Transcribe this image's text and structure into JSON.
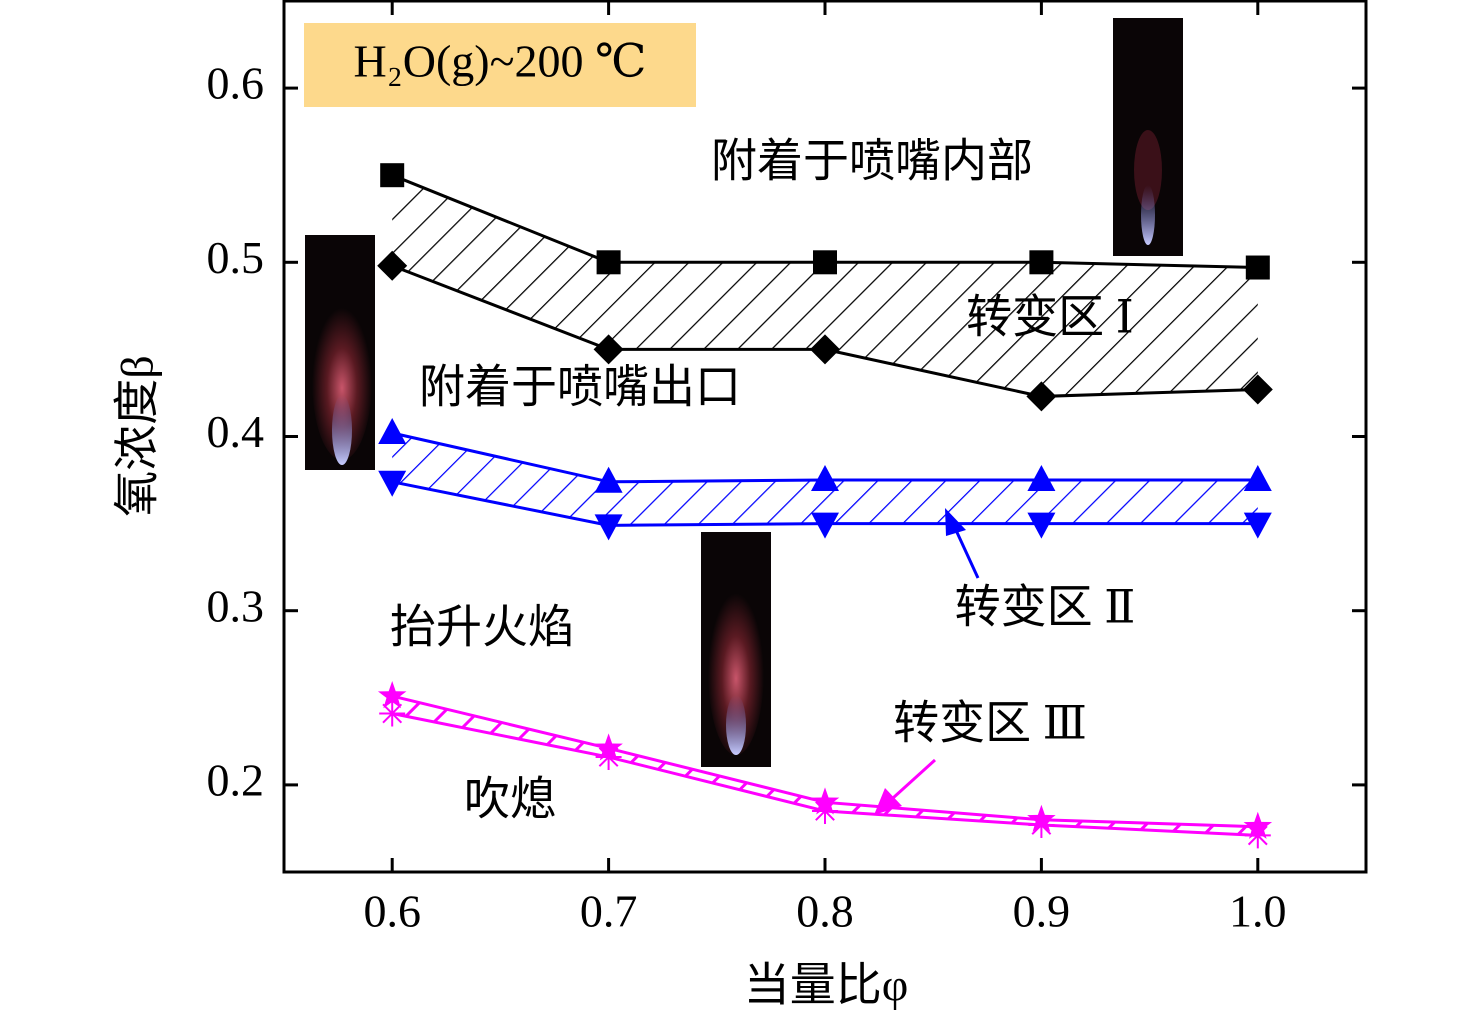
{
  "chart_data": {
    "type": "line",
    "x_label": "当量比φ",
    "y_label": "氧浓度β",
    "x": [
      0.6,
      0.7,
      0.8,
      0.9,
      1.0
    ],
    "xlim": [
      0.55,
      1.05
    ],
    "xticks": [
      0.6,
      0.7,
      0.8,
      0.9,
      {
        "value": 1.0,
        "label": "1.0"
      }
    ],
    "ylim": [
      0.15,
      0.65
    ],
    "yticks": [
      0.2,
      0.3,
      0.4,
      0.5,
      0.6
    ],
    "series": [
      {
        "color": "#000000",
        "marker": "square",
        "values": [
          0.55,
          0.5,
          0.5,
          0.5,
          0.497
        ]
      },
      {
        "color": "#000000",
        "marker": "diamond",
        "values": [
          0.498,
          0.45,
          0.45,
          0.423,
          0.427
        ]
      },
      {
        "color": "#0000ff",
        "marker": "triangle-up",
        "values": [
          0.402,
          0.374,
          0.375,
          0.375,
          0.375
        ]
      },
      {
        "color": "#0000ff",
        "marker": "triangle-down",
        "values": [
          0.374,
          0.349,
          0.35,
          0.35,
          0.35
        ]
      },
      {
        "color": "#ff00ff",
        "marker": "star",
        "values": [
          0.251,
          0.221,
          0.19,
          0.18,
          0.176
        ]
      },
      {
        "color": "#ff00ff",
        "marker": "asterisk",
        "values": [
          0.241,
          0.216,
          0.185,
          0.177,
          0.171
        ]
      }
    ],
    "annotations": [
      "H₂O(g)~200 ℃",
      "附着于喷嘴内部",
      "附着于喷嘴出口",
      "抬升火焰",
      "吹熄",
      "转变区 Ⅰ",
      "转变区 Ⅱ",
      "转变区 Ⅲ"
    ]
  }
}
